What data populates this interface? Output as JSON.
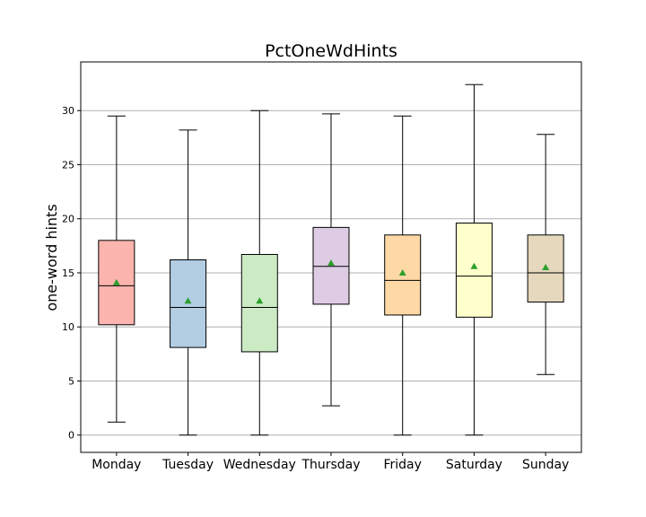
{
  "chart_data": {
    "type": "box",
    "title": "PctOneWdHints",
    "ylabel": "one-word hints",
    "xlabel": "",
    "ylim": [
      -1.6,
      34.5
    ],
    "yticks": [
      0,
      5,
      10,
      15,
      20,
      25,
      30
    ],
    "grid": "y",
    "categories": [
      "Monday",
      "Tuesday",
      "Wednesday",
      "Thursday",
      "Friday",
      "Saturday",
      "Sunday"
    ],
    "boxes": [
      {
        "category": "Monday",
        "whisker_low": 1.2,
        "q1": 10.2,
        "median": 13.8,
        "q3": 18.0,
        "whisker_high": 29.5,
        "mean": 14.1,
        "color": "#fbb4ae"
      },
      {
        "category": "Tuesday",
        "whisker_low": 0.0,
        "q1": 8.1,
        "median": 11.8,
        "q3": 16.2,
        "whisker_high": 28.2,
        "mean": 12.4,
        "color": "#b3cde3"
      },
      {
        "category": "Wednesday",
        "whisker_low": 0.0,
        "q1": 7.7,
        "median": 11.8,
        "q3": 16.7,
        "whisker_high": 30.0,
        "mean": 12.4,
        "color": "#ccebc5"
      },
      {
        "category": "Thursday",
        "whisker_low": 2.7,
        "q1": 12.1,
        "median": 15.6,
        "q3": 19.2,
        "whisker_high": 29.7,
        "mean": 15.9,
        "color": "#decbe4"
      },
      {
        "category": "Friday",
        "whisker_low": 0.0,
        "q1": 11.1,
        "median": 14.3,
        "q3": 18.5,
        "whisker_high": 29.5,
        "mean": 15.0,
        "color": "#fed9a6"
      },
      {
        "category": "Saturday",
        "whisker_low": 0.0,
        "q1": 10.9,
        "median": 14.7,
        "q3": 19.6,
        "whisker_high": 32.4,
        "mean": 15.6,
        "color": "#ffffcc"
      },
      {
        "category": "Sunday",
        "whisker_low": 5.6,
        "q1": 12.3,
        "median": 15.0,
        "q3": 18.5,
        "whisker_high": 27.8,
        "mean": 15.5,
        "color": "#e5d8bd"
      }
    ],
    "mean_marker_color": "#2ca02c"
  }
}
